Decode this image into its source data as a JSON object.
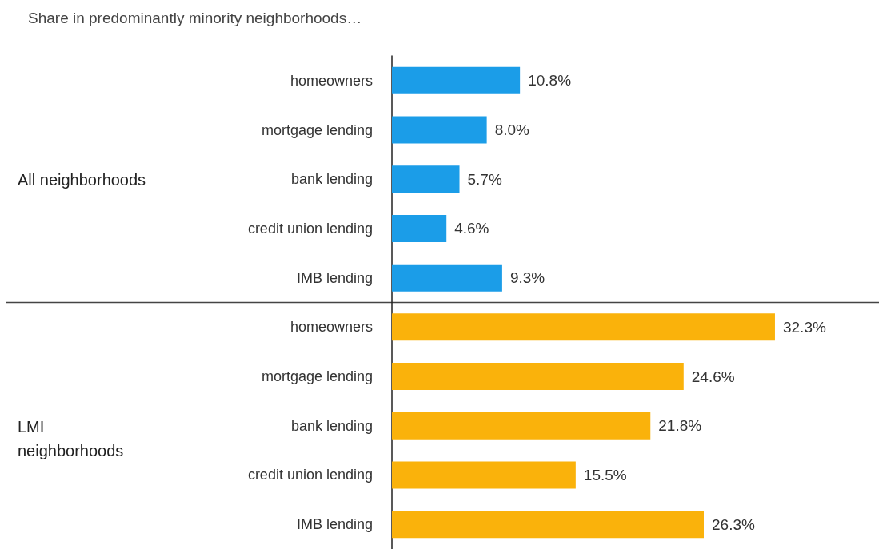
{
  "chart_data": {
    "type": "bar",
    "orientation": "horizontal",
    "title": "Share in predominantly minority neighborhoods…",
    "categories": [
      "homeowners",
      "mortgage lending",
      "bank lending",
      "credit union lending",
      "IMB lending",
      "homeowners",
      "mortgage lending",
      "bank lending",
      "credit union lending",
      "IMB lending"
    ],
    "series": [
      {
        "color": "#1b9de8",
        "values": [
          10.8,
          8.0,
          5.7,
          4.6,
          9.3,
          null,
          null,
          null,
          null,
          null
        ],
        "value_labels": [
          "10.8%",
          "8.0%",
          "5.7%",
          "4.6%",
          "9.3%",
          null,
          null,
          null,
          null,
          null
        ]
      },
      {
        "color": "#fab20b",
        "values": [
          null,
          null,
          null,
          null,
          null,
          32.3,
          24.6,
          21.8,
          15.5,
          26.3
        ],
        "value_labels": [
          null,
          null,
          null,
          null,
          null,
          "32.3%",
          "24.6%",
          "21.8%",
          "15.5%",
          "26.3%"
        ]
      }
    ],
    "annotations": [
      "All neighborhoods",
      "LMI neighborhoods"
    ]
  }
}
